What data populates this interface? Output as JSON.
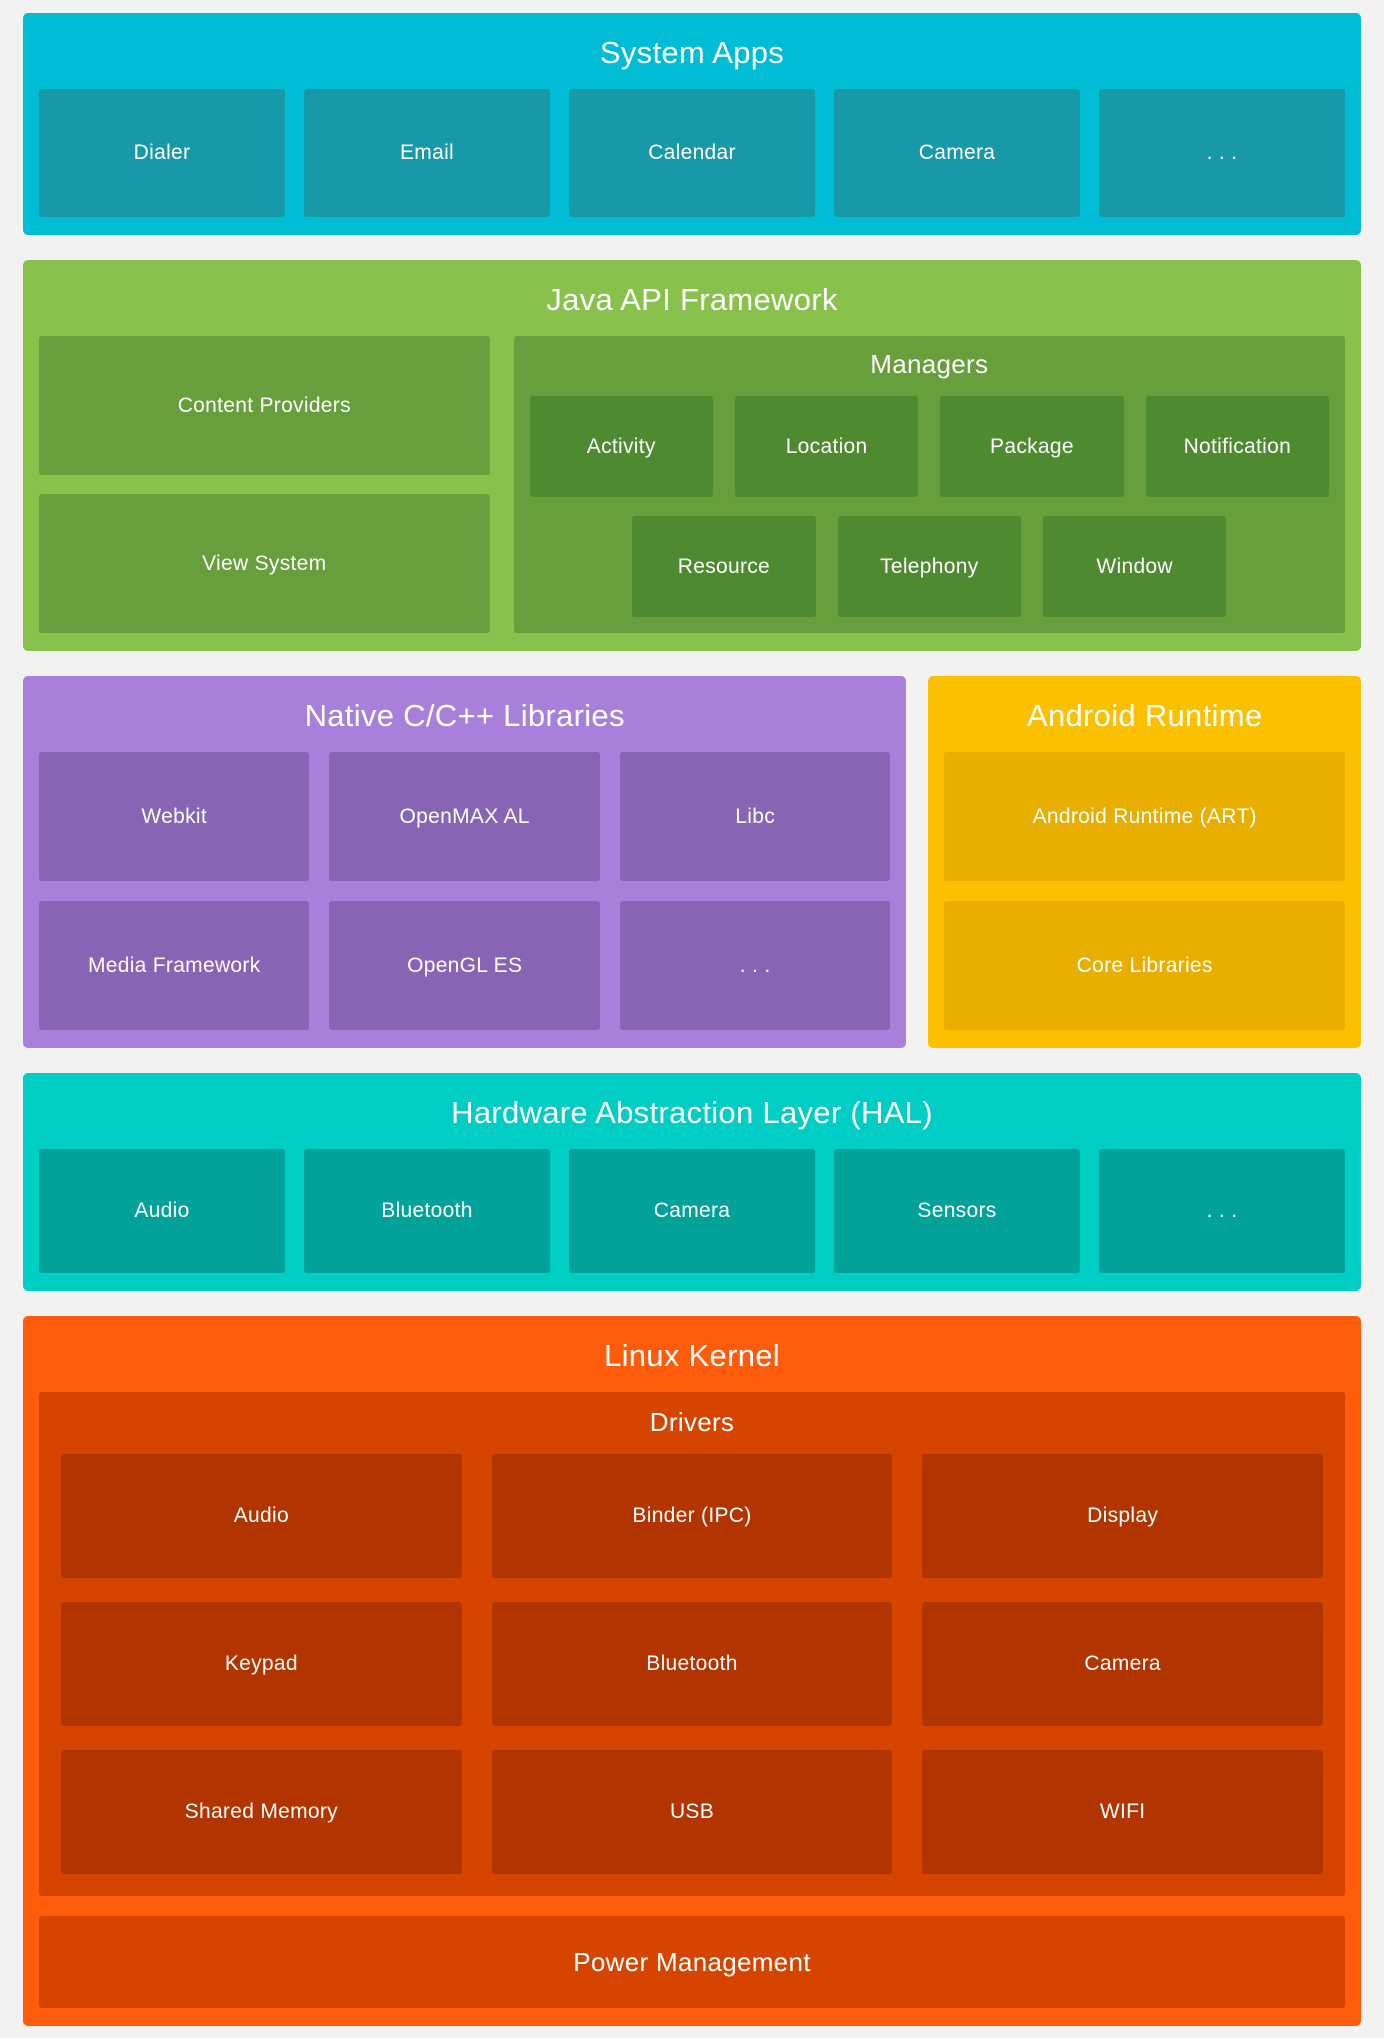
{
  "colors": {
    "page-bg": "#f2f3f1",
    "sysapps-bg": "#00bcd4",
    "sysapps-card": "#1799a8",
    "java-bg": "#88c14b",
    "java-card": "#669f3b",
    "java-box": "#4e8a30",
    "native-bg": "#a880db",
    "native-card": "#8764b4",
    "runtime-bg": "#fbc100",
    "runtime-card": "#e9af00",
    "hal-bg": "#00cdc3",
    "hal-card": "#02a29b",
    "kernel-bg": "#fe5c0a",
    "kernel-group": "#d64500",
    "kernel-card": "#b23400"
  },
  "layers": {
    "system_apps": {
      "title": "System Apps",
      "cards": [
        "Dialer",
        "Email",
        "Calendar",
        "Camera",
        ". . ."
      ]
    },
    "java_api": {
      "title": "Java API Framework",
      "left_cards": [
        "Content Providers",
        "View System"
      ],
      "managers": {
        "title": "Managers",
        "row1": [
          "Activity",
          "Location",
          "Package",
          "Notification"
        ],
        "row2": [
          "Resource",
          "Telephony",
          "Window"
        ]
      }
    },
    "native_libs": {
      "title": "Native C/C++ Libraries",
      "cards": [
        "Webkit",
        "OpenMAX AL",
        "Libc",
        "Media Framework",
        "OpenGL ES",
        ". . ."
      ]
    },
    "android_runtime": {
      "title": "Android Runtime",
      "cards": [
        "Android Runtime (ART)",
        "Core Libraries"
      ]
    },
    "hal": {
      "title": "Hardware Abstraction Layer (HAL)",
      "cards": [
        "Audio",
        "Bluetooth",
        "Camera",
        "Sensors",
        ". . ."
      ]
    },
    "linux_kernel": {
      "title": "Linux Kernel",
      "drivers": {
        "title": "Drivers",
        "cards": [
          "Audio",
          "Binder (IPC)",
          "Display",
          "Keypad",
          "Bluetooth",
          "Camera",
          "Shared Memory",
          "USB",
          "WIFI"
        ]
      },
      "power_label": "Power Management"
    }
  }
}
